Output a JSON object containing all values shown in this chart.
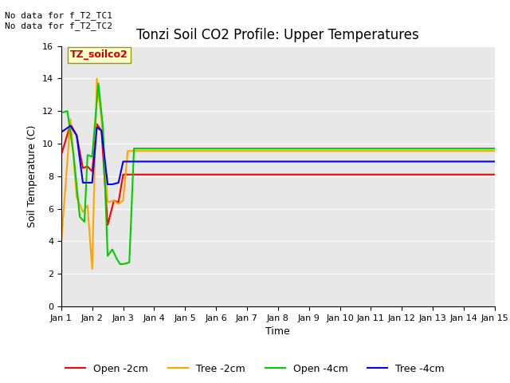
{
  "title": "Tonzi Soil CO2 Profile: Upper Temperatures",
  "xlabel": "Time",
  "ylabel": "Soil Temperature (C)",
  "ylim": [
    0,
    16
  ],
  "yticks": [
    0,
    2,
    4,
    6,
    8,
    10,
    12,
    14,
    16
  ],
  "plot_bg_color": "#e8e8e8",
  "fig_bg_color": "#ffffff",
  "annotation_text": "No data for f_T2_TC1\nNo data for f_T2_TC2",
  "legend_label_text": "TZ_soilco2",
  "colors": {
    "open_2cm": "#ff0000",
    "tree_2cm": "#ffa500",
    "open_4cm": "#00cc00",
    "tree_4cm": "#0000ff"
  },
  "series": {
    "open_2cm": {
      "x_days": [
        1.0,
        1.3,
        1.5,
        1.7,
        1.85,
        2.0,
        2.15,
        2.3,
        2.5,
        2.7,
        2.85,
        3.0,
        3.15,
        3.3,
        3.5,
        15.0
      ],
      "y": [
        9.3,
        11.2,
        10.5,
        8.5,
        8.6,
        8.3,
        11.2,
        10.8,
        5.0,
        6.5,
        6.4,
        8.1,
        8.1,
        8.1,
        8.1,
        8.1
      ]
    },
    "tree_2cm": {
      "x_days": [
        1.0,
        1.3,
        1.5,
        1.7,
        1.85,
        2.0,
        2.15,
        2.3,
        2.5,
        2.7,
        2.85,
        3.0,
        3.15,
        3.3,
        3.5,
        15.0
      ],
      "y": [
        3.9,
        11.5,
        6.7,
        5.8,
        6.2,
        2.3,
        14.0,
        11.5,
        6.4,
        6.5,
        6.3,
        6.5,
        9.55,
        9.55,
        9.55,
        9.55
      ]
    },
    "open_4cm": {
      "x_days": [
        1.0,
        1.2,
        1.4,
        1.6,
        1.75,
        1.85,
        2.0,
        2.2,
        2.35,
        2.5,
        2.65,
        2.8,
        2.9,
        3.0,
        3.1,
        3.2,
        3.35,
        15.0
      ],
      "y": [
        11.9,
        12.0,
        9.3,
        5.5,
        5.2,
        9.3,
        9.2,
        13.7,
        11.0,
        3.1,
        3.5,
        2.9,
        2.6,
        2.6,
        2.65,
        2.7,
        9.7,
        9.7
      ]
    },
    "tree_4cm": {
      "x_days": [
        1.0,
        1.3,
        1.5,
        1.7,
        1.85,
        2.0,
        2.15,
        2.3,
        2.5,
        2.65,
        2.85,
        3.0,
        3.15,
        3.35,
        15.0
      ],
      "y": [
        10.7,
        11.1,
        10.5,
        7.6,
        7.6,
        7.6,
        11.0,
        10.8,
        7.5,
        7.5,
        7.6,
        8.9,
        8.9,
        8.9,
        8.9
      ]
    }
  },
  "xaxis_tick_days": [
    1,
    2,
    3,
    4,
    5,
    6,
    7,
    8,
    9,
    10,
    11,
    12,
    13,
    14,
    15
  ],
  "xaxis_tick_labels": [
    "Jan 1",
    "Jan 2",
    "Jan 3",
    "Jan 4",
    "Jan 5",
    "Jan 6",
    "Jan 7",
    "Jan 8",
    "Jan 9",
    "Jan 10",
    "Jan 11",
    "Jan 12",
    "Jan 13",
    "Jan 14",
    "Jan 15"
  ],
  "title_fontsize": 12,
  "axis_label_fontsize": 9,
  "tick_fontsize": 8,
  "annotation_fontsize": 8,
  "legend_fontsize": 9,
  "line_width": 1.5
}
